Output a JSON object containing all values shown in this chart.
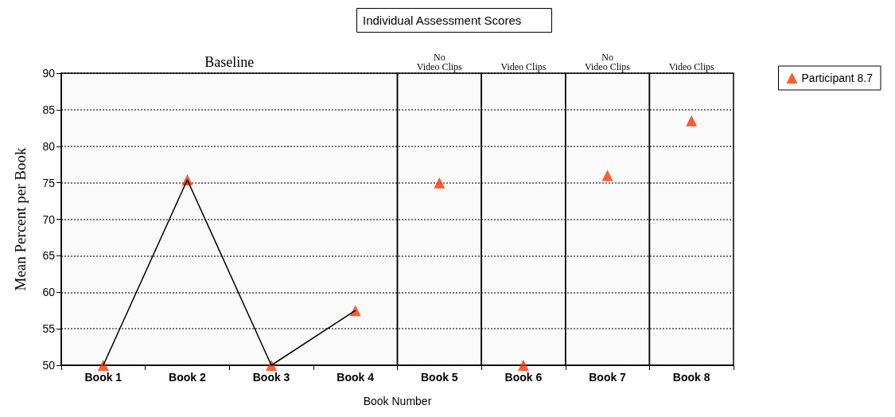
{
  "chart_data": {
    "type": "scatter",
    "title": "Individual Assessment Scores",
    "xlabel": "Book Number",
    "ylabel": "Mean Percent per Book",
    "categories": [
      "Book 1",
      "Book 2",
      "Book 3",
      "Book 4",
      "Book 5",
      "Book 6",
      "Book 7",
      "Book 8"
    ],
    "series": [
      {
        "type": "line",
        "color": "#000000",
        "marker": "none",
        "values": [
          50,
          75.4,
          50,
          57.5,
          null,
          null,
          null,
          null
        ]
      },
      {
        "name": "Participant 8.7",
        "color": "#ff3300",
        "marker": "triangle",
        "values": [
          50,
          75.4,
          50,
          57.5,
          75,
          50,
          76,
          83.5
        ]
      }
    ],
    "bands": [
      {
        "axis": "x",
        "from": "Book 1",
        "to": "Book 4",
        "label": "Baseline"
      },
      {
        "axis": "x",
        "from": "Book 5",
        "to": "Book 5",
        "label": "No\nVideo Clips"
      },
      {
        "axis": "x",
        "from": "Book 6",
        "to": "Book 6",
        "label": "Video Clips"
      },
      {
        "axis": "x",
        "from": "Book 7",
        "to": "Book 7",
        "label": "No\nVideo Clips"
      },
      {
        "axis": "x",
        "from": "Book 8",
        "to": "Book 8",
        "label": "Video Clips"
      }
    ],
    "ylim": [
      50,
      90
    ],
    "yticks": [
      50,
      55,
      60,
      65,
      70,
      75,
      80,
      85,
      90
    ],
    "grid": "y",
    "legend": "top right"
  }
}
